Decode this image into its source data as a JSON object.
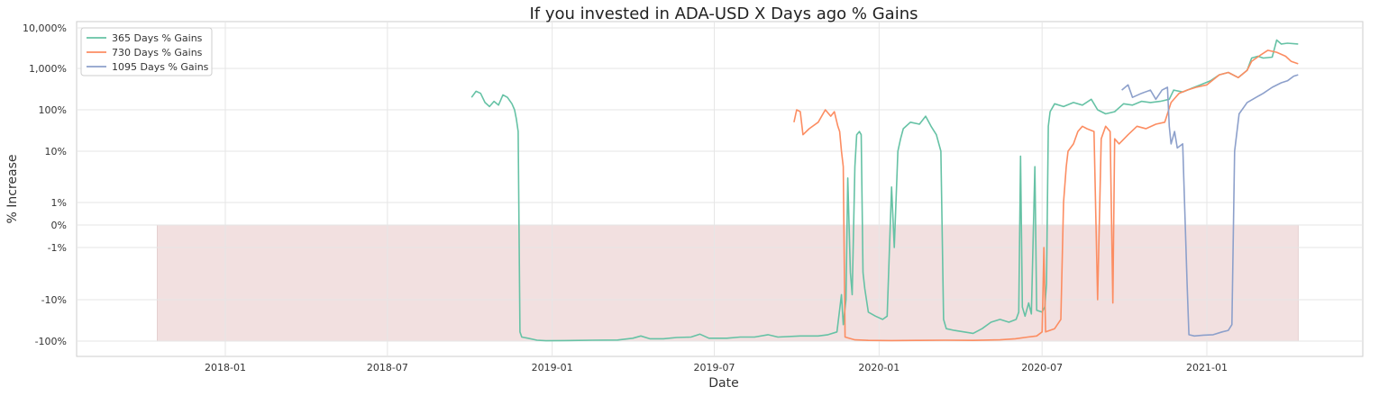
{
  "chart_data": {
    "type": "line",
    "title": "If you invested in ADA-USD X Days ago % Gains",
    "xlabel": "Date",
    "ylabel": "% Increase",
    "y_scale": "symlog",
    "x_range": [
      "2017-09-15",
      "2021-05-05"
    ],
    "y_range_pct": [
      -200,
      10000
    ],
    "grid": true,
    "legend_position": "top-left",
    "x_ticks": [
      "2018-01",
      "2018-07",
      "2019-01",
      "2019-07",
      "2020-01",
      "2020-07",
      "2021-01"
    ],
    "y_ticks": [
      {
        "value": 10000,
        "label": "10,000%"
      },
      {
        "value": 1000,
        "label": "1,000%"
      },
      {
        "value": 100,
        "label": "100%"
      },
      {
        "value": 10,
        "label": "10%"
      },
      {
        "value": 1,
        "label": "1%"
      },
      {
        "value": 0,
        "label": "0%"
      },
      {
        "value": -1,
        "label": "-1%"
      },
      {
        "value": -10,
        "label": "-10%"
      },
      {
        "value": -100,
        "label": "-100%"
      }
    ],
    "shaded_region": {
      "x_start": "2017-10-17",
      "x_end": "2021-04-13",
      "y_from": -100,
      "y_to": 0,
      "color": "#f2e0e0"
    },
    "series": [
      {
        "name": "365 Days % Gains",
        "color": "#66c2a5",
        "points": [
          [
            "2018-10-03",
            200
          ],
          [
            "2018-10-08",
            280
          ],
          [
            "2018-10-13",
            250
          ],
          [
            "2018-10-18",
            150
          ],
          [
            "2018-10-23",
            120
          ],
          [
            "2018-10-28",
            160
          ],
          [
            "2018-11-02",
            130
          ],
          [
            "2018-11-07",
            230
          ],
          [
            "2018-11-12",
            200
          ],
          [
            "2018-11-17",
            140
          ],
          [
            "2018-11-20",
            100
          ],
          [
            "2018-11-22",
            60
          ],
          [
            "2018-11-24",
            30
          ],
          [
            "2018-11-26",
            -60
          ],
          [
            "2018-11-28",
            -80
          ],
          [
            "2018-12-05",
            -85
          ],
          [
            "2018-12-15",
            -95
          ],
          [
            "2018-12-25",
            -98
          ],
          [
            "2019-01-15",
            -97
          ],
          [
            "2019-02-15",
            -95
          ],
          [
            "2019-03-15",
            -94
          ],
          [
            "2019-04-01",
            -85
          ],
          [
            "2019-04-10",
            -75
          ],
          [
            "2019-04-20",
            -88
          ],
          [
            "2019-05-05",
            -88
          ],
          [
            "2019-05-20",
            -82
          ],
          [
            "2019-06-05",
            -80
          ],
          [
            "2019-06-15",
            -68
          ],
          [
            "2019-06-25",
            -85
          ],
          [
            "2019-07-15",
            -85
          ],
          [
            "2019-07-30",
            -80
          ],
          [
            "2019-08-15",
            -80
          ],
          [
            "2019-08-30",
            -70
          ],
          [
            "2019-09-10",
            -80
          ],
          [
            "2019-10-05",
            -75
          ],
          [
            "2019-10-25",
            -75
          ],
          [
            "2019-11-05",
            -70
          ],
          [
            "2019-11-15",
            -60
          ],
          [
            "2019-11-20",
            -8
          ],
          [
            "2019-11-22",
            -40
          ],
          [
            "2019-11-25",
            -10
          ],
          [
            "2019-11-27",
            3
          ],
          [
            "2019-11-30",
            -3
          ],
          [
            "2019-12-02",
            -8
          ],
          [
            "2019-12-05",
            5
          ],
          [
            "2019-12-07",
            25
          ],
          [
            "2019-12-10",
            30
          ],
          [
            "2019-12-12",
            25
          ],
          [
            "2019-12-14",
            -3
          ],
          [
            "2019-12-16",
            -6
          ],
          [
            "2019-12-20",
            -20
          ],
          [
            "2019-12-28",
            -25
          ],
          [
            "2020-01-05",
            -30
          ],
          [
            "2020-01-10",
            -25
          ],
          [
            "2020-01-12",
            -2
          ],
          [
            "2020-01-15",
            2
          ],
          [
            "2020-01-18",
            -1
          ],
          [
            "2020-01-22",
            10
          ],
          [
            "2020-01-25",
            20
          ],
          [
            "2020-01-28",
            35
          ],
          [
            "2020-02-05",
            50
          ],
          [
            "2020-02-15",
            45
          ],
          [
            "2020-02-22",
            70
          ],
          [
            "2020-02-28",
            40
          ],
          [
            "2020-03-05",
            25
          ],
          [
            "2020-03-10",
            10
          ],
          [
            "2020-03-13",
            -30
          ],
          [
            "2020-03-16",
            -50
          ],
          [
            "2020-03-25",
            -55
          ],
          [
            "2020-04-05",
            -60
          ],
          [
            "2020-04-15",
            -65
          ],
          [
            "2020-04-25",
            -50
          ],
          [
            "2020-05-05",
            -35
          ],
          [
            "2020-05-15",
            -30
          ],
          [
            "2020-05-25",
            -35
          ],
          [
            "2020-06-02",
            -30
          ],
          [
            "2020-06-05",
            -20
          ],
          [
            "2020-06-07",
            8
          ],
          [
            "2020-06-09",
            -15
          ],
          [
            "2020-06-12",
            -25
          ],
          [
            "2020-06-16",
            -12
          ],
          [
            "2020-06-19",
            -22
          ],
          [
            "2020-06-23",
            5
          ],
          [
            "2020-06-25",
            -18
          ],
          [
            "2020-07-01",
            -20
          ],
          [
            "2020-07-04",
            -15
          ],
          [
            "2020-07-06",
            -5
          ],
          [
            "2020-07-08",
            40
          ],
          [
            "2020-07-10",
            90
          ],
          [
            "2020-07-15",
            140
          ],
          [
            "2020-07-25",
            120
          ],
          [
            "2020-08-05",
            150
          ],
          [
            "2020-08-15",
            130
          ],
          [
            "2020-08-25",
            180
          ],
          [
            "2020-09-01",
            100
          ],
          [
            "2020-09-10",
            80
          ],
          [
            "2020-09-20",
            90
          ],
          [
            "2020-09-30",
            140
          ],
          [
            "2020-10-10",
            130
          ],
          [
            "2020-10-20",
            160
          ],
          [
            "2020-10-30",
            150
          ],
          [
            "2020-11-10",
            160
          ],
          [
            "2020-11-20",
            180
          ],
          [
            "2020-11-25",
            300
          ],
          [
            "2020-12-05",
            270
          ],
          [
            "2020-12-15",
            330
          ],
          [
            "2020-12-25",
            400
          ],
          [
            "2021-01-05",
            500
          ],
          [
            "2021-01-15",
            700
          ],
          [
            "2021-01-25",
            800
          ],
          [
            "2021-02-05",
            600
          ],
          [
            "2021-02-15",
            900
          ],
          [
            "2021-02-20",
            1800
          ],
          [
            "2021-02-27",
            2000
          ],
          [
            "2021-03-05",
            1800
          ],
          [
            "2021-03-15",
            1900
          ],
          [
            "2021-03-20",
            5000
          ],
          [
            "2021-03-25",
            4000
          ],
          [
            "2021-04-01",
            4200
          ],
          [
            "2021-04-13",
            4000
          ]
        ]
      },
      {
        "name": "730 Days % Gains",
        "color": "#fc8d62",
        "points": [
          [
            "2019-09-28",
            50
          ],
          [
            "2019-10-01",
            100
          ],
          [
            "2019-10-05",
            90
          ],
          [
            "2019-10-08",
            25
          ],
          [
            "2019-10-15",
            35
          ],
          [
            "2019-10-25",
            50
          ],
          [
            "2019-11-02",
            100
          ],
          [
            "2019-11-08",
            70
          ],
          [
            "2019-11-12",
            90
          ],
          [
            "2019-11-16",
            40
          ],
          [
            "2019-11-18",
            30
          ],
          [
            "2019-11-20",
            10
          ],
          [
            "2019-11-22",
            5
          ],
          [
            "2019-11-24",
            -80
          ],
          [
            "2019-12-05",
            -93
          ],
          [
            "2019-12-20",
            -96
          ],
          [
            "2020-01-15",
            -97
          ],
          [
            "2020-02-15",
            -96
          ],
          [
            "2020-03-15",
            -95
          ],
          [
            "2020-04-15",
            -96
          ],
          [
            "2020-05-15",
            -93
          ],
          [
            "2020-06-01",
            -88
          ],
          [
            "2020-06-15",
            -80
          ],
          [
            "2020-06-25",
            -75
          ],
          [
            "2020-07-01",
            -60
          ],
          [
            "2020-07-03",
            -1
          ],
          [
            "2020-07-05",
            -60
          ],
          [
            "2020-07-15",
            -50
          ],
          [
            "2020-07-22",
            -30
          ],
          [
            "2020-07-25",
            1
          ],
          [
            "2020-07-28",
            5
          ],
          [
            "2020-07-30",
            10
          ],
          [
            "2020-08-05",
            15
          ],
          [
            "2020-08-10",
            30
          ],
          [
            "2020-08-15",
            40
          ],
          [
            "2020-08-20",
            35
          ],
          [
            "2020-08-28",
            30
          ],
          [
            "2020-09-01",
            -10
          ],
          [
            "2020-09-05",
            20
          ],
          [
            "2020-09-10",
            40
          ],
          [
            "2020-09-15",
            30
          ],
          [
            "2020-09-18",
            -12
          ],
          [
            "2020-09-20",
            20
          ],
          [
            "2020-09-25",
            15
          ],
          [
            "2020-10-05",
            25
          ],
          [
            "2020-10-15",
            40
          ],
          [
            "2020-10-25",
            35
          ],
          [
            "2020-11-05",
            45
          ],
          [
            "2020-11-15",
            50
          ],
          [
            "2020-11-22",
            150
          ],
          [
            "2020-12-01",
            250
          ],
          [
            "2020-12-10",
            300
          ],
          [
            "2020-12-20",
            350
          ],
          [
            "2021-01-01",
            400
          ],
          [
            "2021-01-15",
            700
          ],
          [
            "2021-01-25",
            800
          ],
          [
            "2021-02-05",
            600
          ],
          [
            "2021-02-15",
            900
          ],
          [
            "2021-02-20",
            1500
          ],
          [
            "2021-02-28",
            2000
          ],
          [
            "2021-03-10",
            2800
          ],
          [
            "2021-03-20",
            2500
          ],
          [
            "2021-03-30",
            2000
          ],
          [
            "2021-04-05",
            1500
          ],
          [
            "2021-04-13",
            1300
          ]
        ]
      },
      {
        "name": "1095 Days % Gains",
        "color": "#8da0cb",
        "points": [
          [
            "2020-09-28",
            300
          ],
          [
            "2020-10-05",
            400
          ],
          [
            "2020-10-10",
            200
          ],
          [
            "2020-10-20",
            250
          ],
          [
            "2020-10-30",
            300
          ],
          [
            "2020-11-05",
            180
          ],
          [
            "2020-11-12",
            300
          ],
          [
            "2020-11-18",
            350
          ],
          [
            "2020-11-20",
            40
          ],
          [
            "2020-11-22",
            15
          ],
          [
            "2020-11-26",
            30
          ],
          [
            "2020-11-29",
            12
          ],
          [
            "2020-12-05",
            15
          ],
          [
            "2020-12-10",
            -5
          ],
          [
            "2020-12-12",
            -70
          ],
          [
            "2020-12-18",
            -75
          ],
          [
            "2020-12-28",
            -72
          ],
          [
            "2021-01-08",
            -70
          ],
          [
            "2021-01-18",
            -60
          ],
          [
            "2021-01-25",
            -55
          ],
          [
            "2021-01-29",
            -40
          ],
          [
            "2021-02-01",
            10
          ],
          [
            "2021-02-06",
            80
          ],
          [
            "2021-02-15",
            150
          ],
          [
            "2021-02-25",
            200
          ],
          [
            "2021-03-05",
            250
          ],
          [
            "2021-03-15",
            350
          ],
          [
            "2021-03-25",
            450
          ],
          [
            "2021-04-01",
            500
          ],
          [
            "2021-04-08",
            650
          ],
          [
            "2021-04-13",
            700
          ]
        ]
      }
    ]
  }
}
